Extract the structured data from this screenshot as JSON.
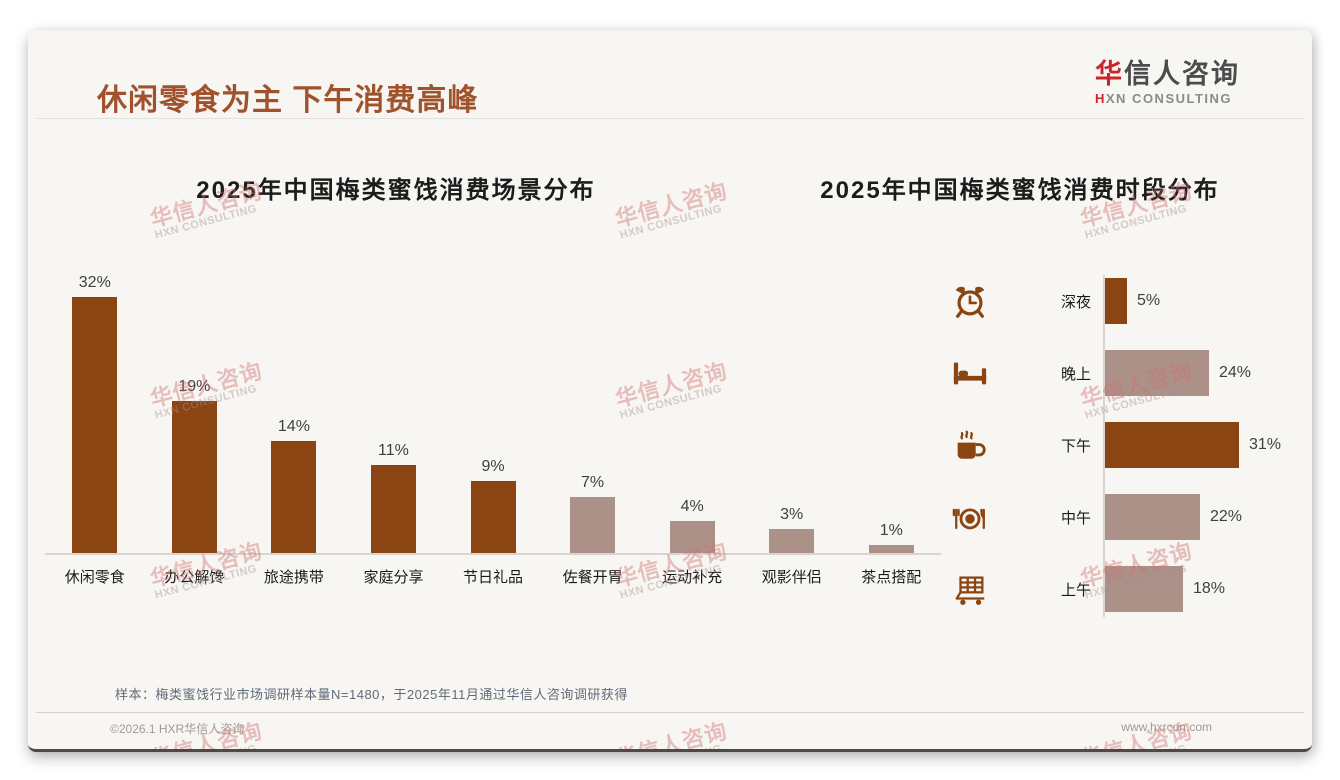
{
  "page_title": "休闲零食为主 下午消费高峰",
  "logo": {
    "cn_accent": "华",
    "cn_rest": "信人咨询",
    "en_accent": "H",
    "en_rest": "XN CONSULTING"
  },
  "watermark": {
    "line1": "华信人咨询",
    "line2": "HXN CONSULTING"
  },
  "footnote": "样本：梅类蜜饯行业市场调研样本量N=1480，于2025年11月通过华信人咨询调研获得",
  "footer": {
    "left": "©2026.1 HXR华信人咨询",
    "right": "www.hxrcon.com"
  },
  "colors": {
    "emphasis_bar": "#8B4513",
    "muted_bar": "#AC9189",
    "title_brown": "#A0522D",
    "logo_red": "#C9252B",
    "axis_gray": "#d8d5d1"
  },
  "chart_data": [
    {
      "type": "bar",
      "orientation": "vertical",
      "title": "2025年中国梅类蜜饯消费场景分布",
      "categories": [
        "休闲零食",
        "办公解馋",
        "旅途携带",
        "家庭分享",
        "节日礼品",
        "佐餐开胃",
        "运动补充",
        "观影伴侣",
        "茶点搭配"
      ],
      "values": [
        32,
        19,
        14,
        11,
        9,
        7,
        4,
        3,
        1
      ],
      "value_labels": [
        "32%",
        "19%",
        "14%",
        "11%",
        "9%",
        "7%",
        "4%",
        "3%",
        "1%"
      ],
      "emphasized": [
        true,
        true,
        true,
        true,
        true,
        false,
        false,
        false,
        false
      ],
      "unit": "%",
      "ylim": [
        0,
        35
      ],
      "grid": false,
      "legend": "none"
    },
    {
      "type": "bar",
      "orientation": "horizontal",
      "title": "2025年中国梅类蜜饯消费时段分布",
      "categories": [
        "深夜",
        "晚上",
        "下午",
        "中午",
        "上午"
      ],
      "values": [
        5,
        24,
        31,
        22,
        18
      ],
      "value_labels": [
        "5%",
        "24%",
        "31%",
        "22%",
        "18%"
      ],
      "emphasized": [
        true,
        false,
        true,
        false,
        false
      ],
      "icons": [
        "alarm-clock-icon",
        "bed-icon",
        "coffee-mug-icon",
        "dining-plate-icon",
        "shopping-cart-icon"
      ],
      "unit": "%",
      "xlim": [
        0,
        35
      ],
      "grid": false,
      "legend": "none"
    }
  ]
}
